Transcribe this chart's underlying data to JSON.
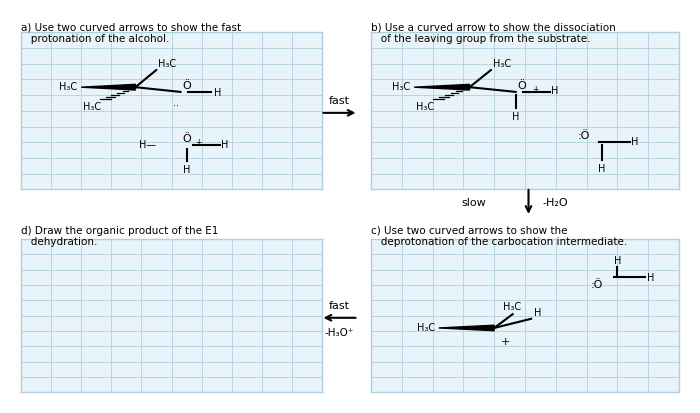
{
  "bg": "#ffffff",
  "grid_color": "#b0cfe0",
  "box_bg": "#e8f4fa",
  "title_fontsize": 7.5,
  "chem_fontsize": 7.0,
  "title_a": "a) Use two curved arrows to show the fast\n   protonation of the alcohol.",
  "title_b": "b) Use a curved arrow to show the dissociation\n   of the leaving group from the substrate.",
  "title_c": "c) Use two curved arrows to show the\n   deprotonation of the carbocation intermediate.",
  "title_d": "d) Draw the organic product of the E1\n   dehydration."
}
